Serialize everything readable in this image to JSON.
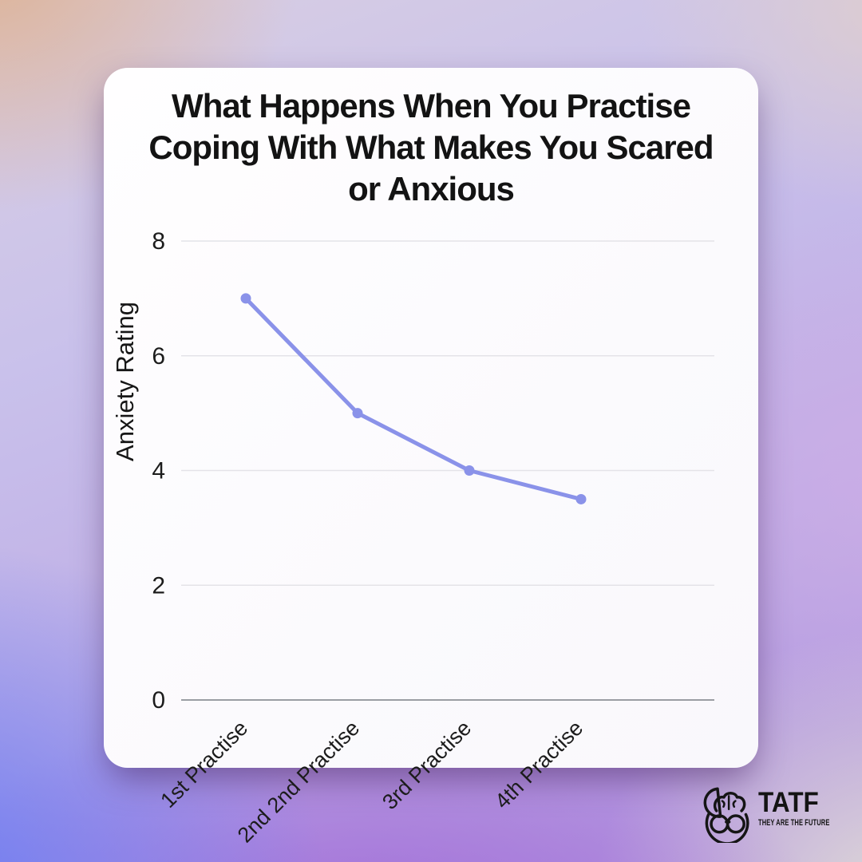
{
  "card": {
    "title_lines": [
      "What Happens When You Practise",
      "Coping With What Makes You Scared",
      "or Anxious"
    ]
  },
  "chart_data": {
    "type": "line",
    "title": "What Happens When You Practise Coping With What Makes You Scared or Anxious",
    "categories": [
      "1st Practise",
      "2nd 2nd Practise",
      "3rd Practise",
      "4th Practise"
    ],
    "series": [
      {
        "name": "Anxiety Rating",
        "values": [
          7,
          5,
          4,
          3.5
        ]
      }
    ],
    "xlabel": "",
    "ylabel": "Anxiety Rating",
    "ylim": [
      0,
      8
    ],
    "yticks": [
      0,
      2,
      4,
      6,
      8
    ],
    "grid": true,
    "legend": false,
    "line_color": "#8a92e9",
    "gridline_color": "#e4e3e8",
    "zero_line_color": "#8d9096",
    "text_color": "#1c1c1c"
  },
  "branding": {
    "wordmark": "TATF",
    "tagline": "THEY ARE THE FUTURE",
    "logo_icon": "brain-head-glasses-icon"
  }
}
